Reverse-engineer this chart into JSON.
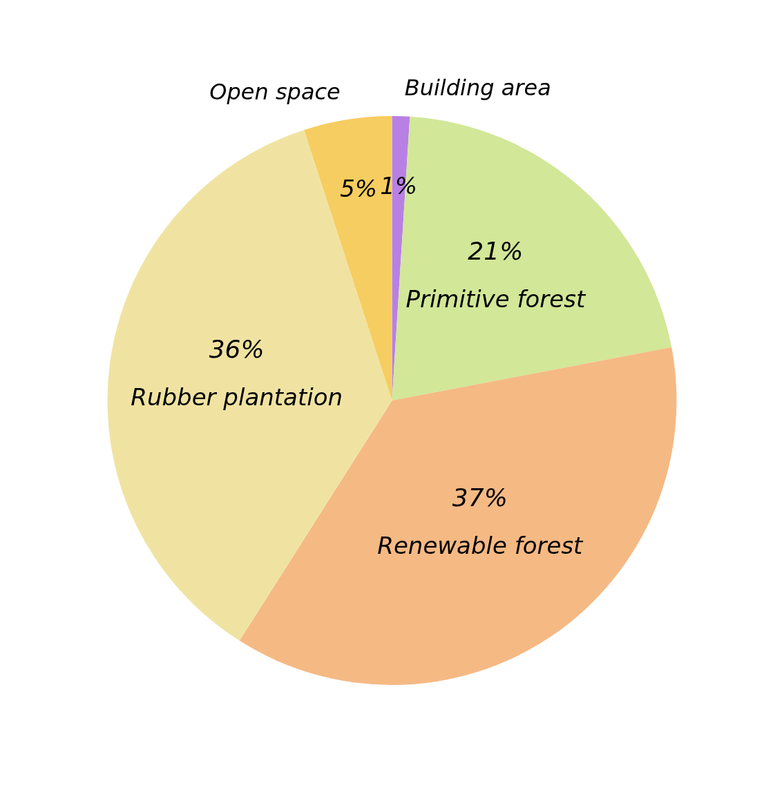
{
  "chart_data": {
    "type": "pie",
    "categories": [
      "Building area",
      "Primitive forest",
      "Renewable forest",
      "Rubber plantation",
      "Open space"
    ],
    "values": [
      1,
      21,
      37,
      36,
      5
    ],
    "value_labels": [
      "1%",
      "21%",
      "37%",
      "36%",
      "5%"
    ],
    "colors": [
      "#b880e4",
      "#d2e798",
      "#f5b984",
      "#f0e3a2",
      "#f6cd60"
    ]
  }
}
